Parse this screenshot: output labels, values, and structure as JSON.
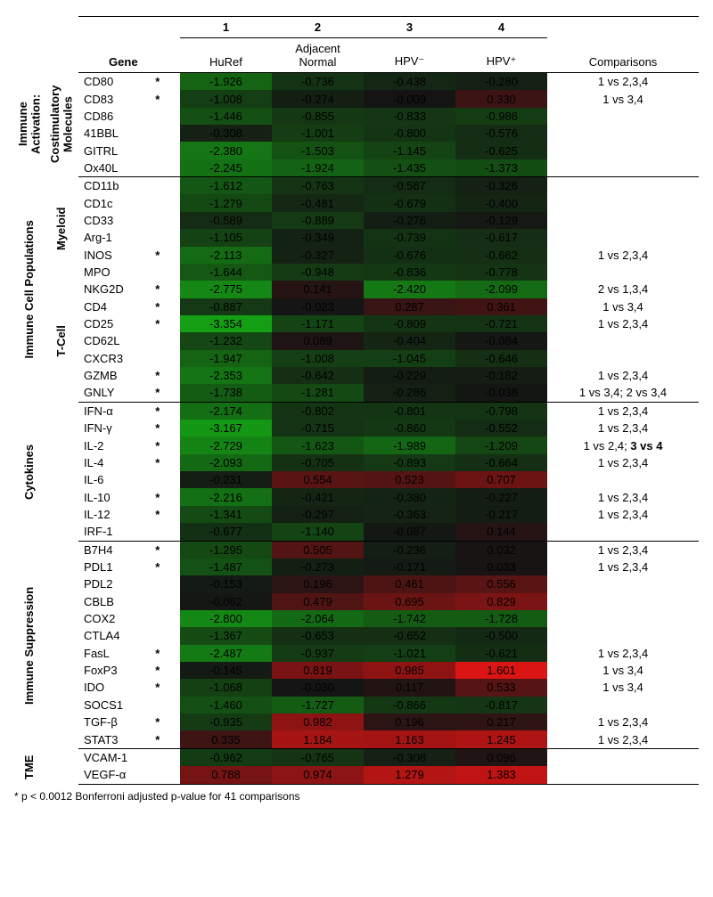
{
  "columns": {
    "indices": [
      "1",
      "2",
      "3",
      "4"
    ],
    "names": [
      "HuRef",
      "Adjacent Normal",
      "HPV⁻",
      "HPV⁺"
    ],
    "gene_header": "Gene",
    "comparisons_header": "Comparisons"
  },
  "footnote": "* p < 0.0012 Bonferroni adjusted p-value for 41 comparisons",
  "heatmap": {
    "mid_color": "#000000",
    "low_color": "#00b400",
    "high_color": "#ff0000",
    "value_min": -3.4,
    "value_max": 1.6
  },
  "sections": [
    {
      "id": "ia",
      "label": "Immune\nActivation:",
      "sublabel": "Costimulatory\nMolecules",
      "rows": [
        {
          "gene": "CD80",
          "star": true,
          "v": [
            -1.926,
            -0.736,
            -0.438,
            -0.28
          ],
          "comp": "1 vs 2,3,4"
        },
        {
          "gene": "CD83",
          "star": true,
          "v": [
            -1.008,
            -0.274,
            -0.009,
            0.33
          ],
          "comp": "1 vs 3,4"
        },
        {
          "gene": "CD86",
          "star": false,
          "v": [
            -1.446,
            -0.855,
            -0.833,
            -0.986
          ],
          "comp": ""
        },
        {
          "gene": "41BBL",
          "star": false,
          "v": [
            -0.308,
            -1.001,
            -0.8,
            -0.576
          ],
          "comp": ""
        },
        {
          "gene": "GITRL",
          "star": false,
          "v": [
            -2.38,
            -1.503,
            -1.145,
            -0.625
          ],
          "comp": ""
        },
        {
          "gene": "Ox40L",
          "star": false,
          "v": [
            -2.245,
            -1.924,
            -1.435,
            -1.373
          ],
          "comp": ""
        }
      ]
    },
    {
      "id": "icp",
      "label": "Immune Cell Populations",
      "subs": [
        {
          "sublabel": "Myeloid",
          "rows": [
            {
              "gene": "CD11b",
              "star": false,
              "v": [
                -1.612,
                -0.763,
                -0.587,
                -0.326
              ],
              "comp": ""
            },
            {
              "gene": "CD1c",
              "star": false,
              "v": [
                -1.279,
                -0.481,
                -0.679,
                -0.4
              ],
              "comp": ""
            },
            {
              "gene": "CD33",
              "star": false,
              "v": [
                -0.589,
                -0.889,
                -0.276,
                -0.129
              ],
              "comp": ""
            },
            {
              "gene": "Arg-1",
              "star": false,
              "v": [
                -1.105,
                -0.349,
                -0.739,
                -0.617
              ],
              "comp": ""
            },
            {
              "gene": "INOS",
              "star": true,
              "v": [
                -2.113,
                -0.327,
                -0.676,
                -0.662
              ],
              "comp": "1 vs 2,3,4"
            },
            {
              "gene": "MPO",
              "star": false,
              "v": [
                -1.644,
                -0.948,
                -0.836,
                -0.778
              ],
              "comp": ""
            }
          ]
        },
        {
          "sublabel": "T-Cell",
          "rows": [
            {
              "gene": "NKG2D",
              "star": true,
              "v": [
                -2.775,
                0.141,
                -2.42,
                -2.099
              ],
              "comp": "2 vs 1,3,4"
            },
            {
              "gene": "CD4",
              "star": true,
              "v": [
                -0.887,
                -0.023,
                0.287,
                0.361
              ],
              "comp": "1 vs 3,4"
            },
            {
              "gene": "CD25",
              "star": true,
              "v": [
                -3.354,
                -1.171,
                -0.809,
                -0.721
              ],
              "comp": "1 vs 2,3,4"
            },
            {
              "gene": "CD62L",
              "star": false,
              "v": [
                -1.232,
                0.089,
                -0.404,
                -0.084
              ],
              "comp": ""
            },
            {
              "gene": "CXCR3",
              "star": false,
              "v": [
                -1.947,
                -1.008,
                -1.045,
                -0.646
              ],
              "comp": ""
            },
            {
              "gene": "GZMB",
              "star": true,
              "v": [
                -2.353,
                -0.642,
                -0.229,
                -0.182
              ],
              "comp": "1 vs 2,3,4"
            },
            {
              "gene": "GNLY",
              "star": true,
              "v": [
                -1.738,
                -1.281,
                -0.286,
                -0.038
              ],
              "comp": "1 vs 3,4; 2 vs 3,4"
            }
          ]
        }
      ]
    },
    {
      "id": "cyt",
      "label": "Cytokines",
      "rows": [
        {
          "gene": "IFN-α",
          "star": true,
          "v": [
            -2.174,
            -0.802,
            -0.801,
            -0.798
          ],
          "comp": "1 vs 2,3,4"
        },
        {
          "gene": "IFN-γ",
          "star": true,
          "v": [
            -3.167,
            -0.715,
            -0.86,
            -0.552
          ],
          "comp": "1 vs 2,3,4"
        },
        {
          "gene": "IL-2",
          "star": true,
          "v": [
            -2.729,
            -1.623,
            -1.989,
            -1.209
          ],
          "comp": "1 vs 2,4; <b>3 vs 4</b>"
        },
        {
          "gene": "IL-4",
          "star": true,
          "v": [
            -2.093,
            -0.705,
            -0.893,
            -0.664
          ],
          "comp": "1 vs 2,3,4"
        },
        {
          "gene": "IL-6",
          "star": false,
          "v": [
            -0.231,
            0.554,
            0.523,
            0.707
          ],
          "comp": ""
        },
        {
          "gene": "IL-10",
          "star": true,
          "v": [
            -2.216,
            -0.421,
            -0.38,
            -0.227
          ],
          "comp": "1 vs 2,3,4"
        },
        {
          "gene": "IL-12",
          "star": true,
          "v": [
            -1.341,
            -0.297,
            -0.363,
            -0.217
          ],
          "comp": "1 vs 2,3,4"
        },
        {
          "gene": "IRF-1",
          "star": false,
          "v": [
            -0.677,
            -1.14,
            -0.087,
            0.144
          ],
          "comp": ""
        }
      ]
    },
    {
      "id": "isup",
      "label": "Immune Suppression",
      "rows": [
        {
          "gene": "B7H4",
          "star": true,
          "v": [
            -1.295,
            0.505,
            -0.236,
            0.032
          ],
          "comp": "1 vs 2,3,4"
        },
        {
          "gene": "PDL1",
          "star": true,
          "v": [
            -1.487,
            -0.273,
            -0.171,
            0.033
          ],
          "comp": "1 vs 2,3,4"
        },
        {
          "gene": "PDL2",
          "star": false,
          "v": [
            -0.153,
            0.196,
            0.461,
            0.556
          ],
          "comp": ""
        },
        {
          "gene": "CBLB",
          "star": false,
          "v": [
            -0.062,
            0.479,
            0.695,
            0.829
          ],
          "comp": ""
        },
        {
          "gene": "COX2",
          "star": false,
          "v": [
            -2.8,
            -2.064,
            -1.742,
            -1.728
          ],
          "comp": ""
        },
        {
          "gene": "CTLA4",
          "star": false,
          "v": [
            -1.367,
            -0.653,
            -0.652,
            -0.5
          ],
          "comp": ""
        },
        {
          "gene": "FasL",
          "star": true,
          "v": [
            -2.487,
            -0.937,
            -1.021,
            -0.621
          ],
          "comp": "1 vs 2,3,4"
        },
        {
          "gene": "FoxP3",
          "star": true,
          "v": [
            -0.145,
            0.819,
            0.985,
            1.601
          ],
          "comp": "1 vs 3,4"
        },
        {
          "gene": "IDO",
          "star": true,
          "v": [
            -1.068,
            -0.03,
            0.117,
            0.533
          ],
          "comp": "1 vs 3,4"
        },
        {
          "gene": "SOCS1",
          "star": false,
          "v": [
            -1.46,
            -1.727,
            -0.866,
            -0.817
          ],
          "comp": ""
        },
        {
          "gene": "TGF-β",
          "star": true,
          "v": [
            -0.935,
            0.982,
            0.196,
            0.217
          ],
          "comp": "1 vs 2,3,4"
        },
        {
          "gene": "STAT3",
          "star": true,
          "v": [
            0.335,
            1.184,
            1.163,
            1.245
          ],
          "comp": "1 vs 2,3,4"
        }
      ]
    },
    {
      "id": "tme",
      "label": "TME",
      "rows": [
        {
          "gene": "VCAM-1",
          "star": false,
          "v": [
            -0.962,
            -0.765,
            -0.308,
            0.096
          ],
          "comp": ""
        },
        {
          "gene": "VEGF-α",
          "star": false,
          "v": [
            0.788,
            0.974,
            1.279,
            1.383
          ],
          "comp": ""
        }
      ]
    }
  ]
}
